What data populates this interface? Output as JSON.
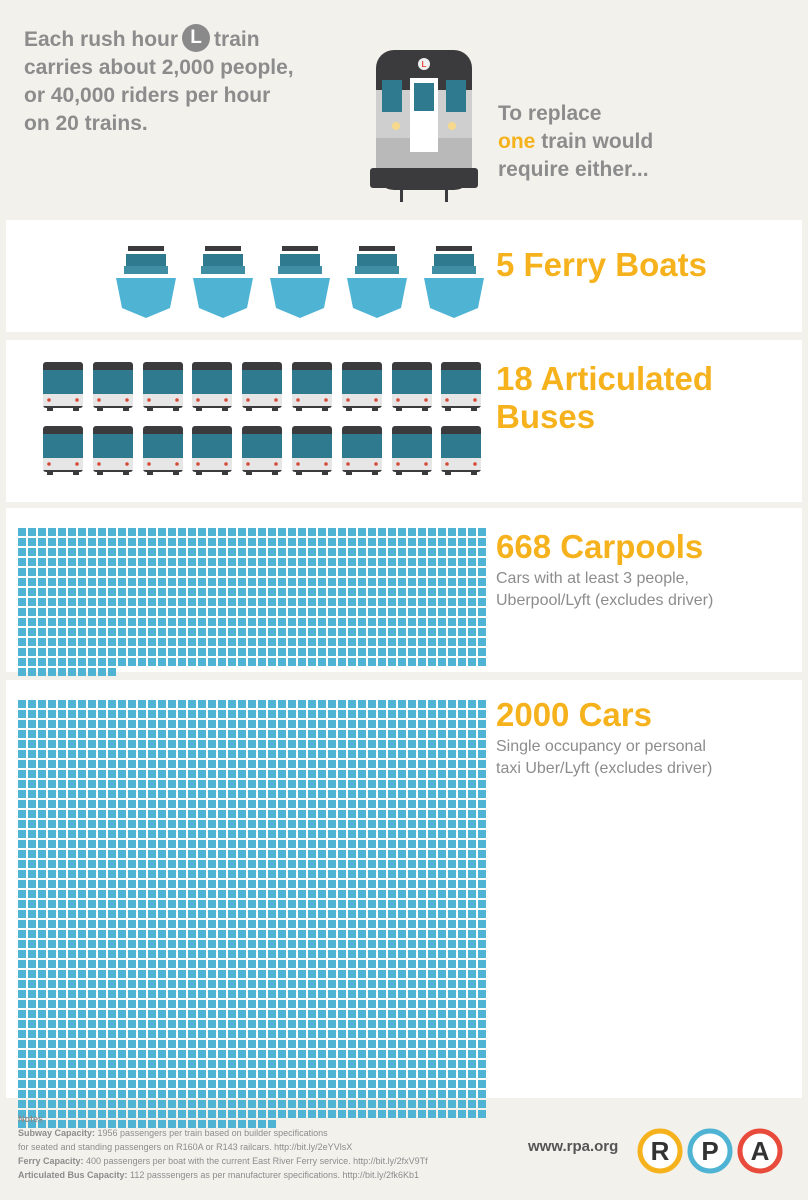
{
  "intro": {
    "line1_before": "Each rush hour",
    "badge": "L",
    "line1_after": "train",
    "line2": "carries about 2,000 people,",
    "line3": "or 40,000 riders per hour",
    "line4": "on 20 trains."
  },
  "replace": {
    "line1": "To replace",
    "highlight": "one",
    "line2_rest": "train would",
    "line3": "require either..."
  },
  "sections": {
    "ferry": {
      "title": "5 Ferry Boats",
      "count": 5
    },
    "bus": {
      "title_line1": "18 Articulated",
      "title_line2": "Buses",
      "count": 18
    },
    "carpool": {
      "title": "668 Carpools",
      "desc_line1": "Cars with at least 3 people,",
      "desc_line2": "Uberpool/Lyft (excludes driver)",
      "count": 668
    },
    "cars": {
      "title": "2000 Cars",
      "desc_line1": "Single occupancy or personal",
      "desc_line2": "taxi Uber/Lyft (excludes driver)",
      "count": 2000
    }
  },
  "notes": {
    "heading": "Notes",
    "n1_label": "Subway Capacity:",
    "n1_text": " 1956 passengers per train based on builder specifications",
    "n1_text2": "for seated and standing passengers on R160A or R143 railcars. http://bit.ly/2eYVlsX",
    "n2_label": "Ferry Capacity:",
    "n2_text": " 400 passengers per boat with the current East River Ferry service. http://bit.ly/2fxV9Tf",
    "n3_label": "Articulated Bus Capacity:",
    "n3_text": " 112 passsengers as per manufacturer specifications. http://bit.ly/2fk6Kb1"
  },
  "footer": {
    "url": "www.rpa.org",
    "logo_r": "R",
    "logo_p": "P",
    "logo_a": "A"
  },
  "colors": {
    "accent": "#f6b21c",
    "text_gray": "#8c8c8c",
    "dot": "#4fb3d4",
    "ferry_hull": "#4fb3d4",
    "ferry_cabin": "#2f7a8e",
    "logo_orange": "#f6b21c",
    "logo_blue": "#4fb3d4",
    "logo_red": "#e84a3c"
  }
}
